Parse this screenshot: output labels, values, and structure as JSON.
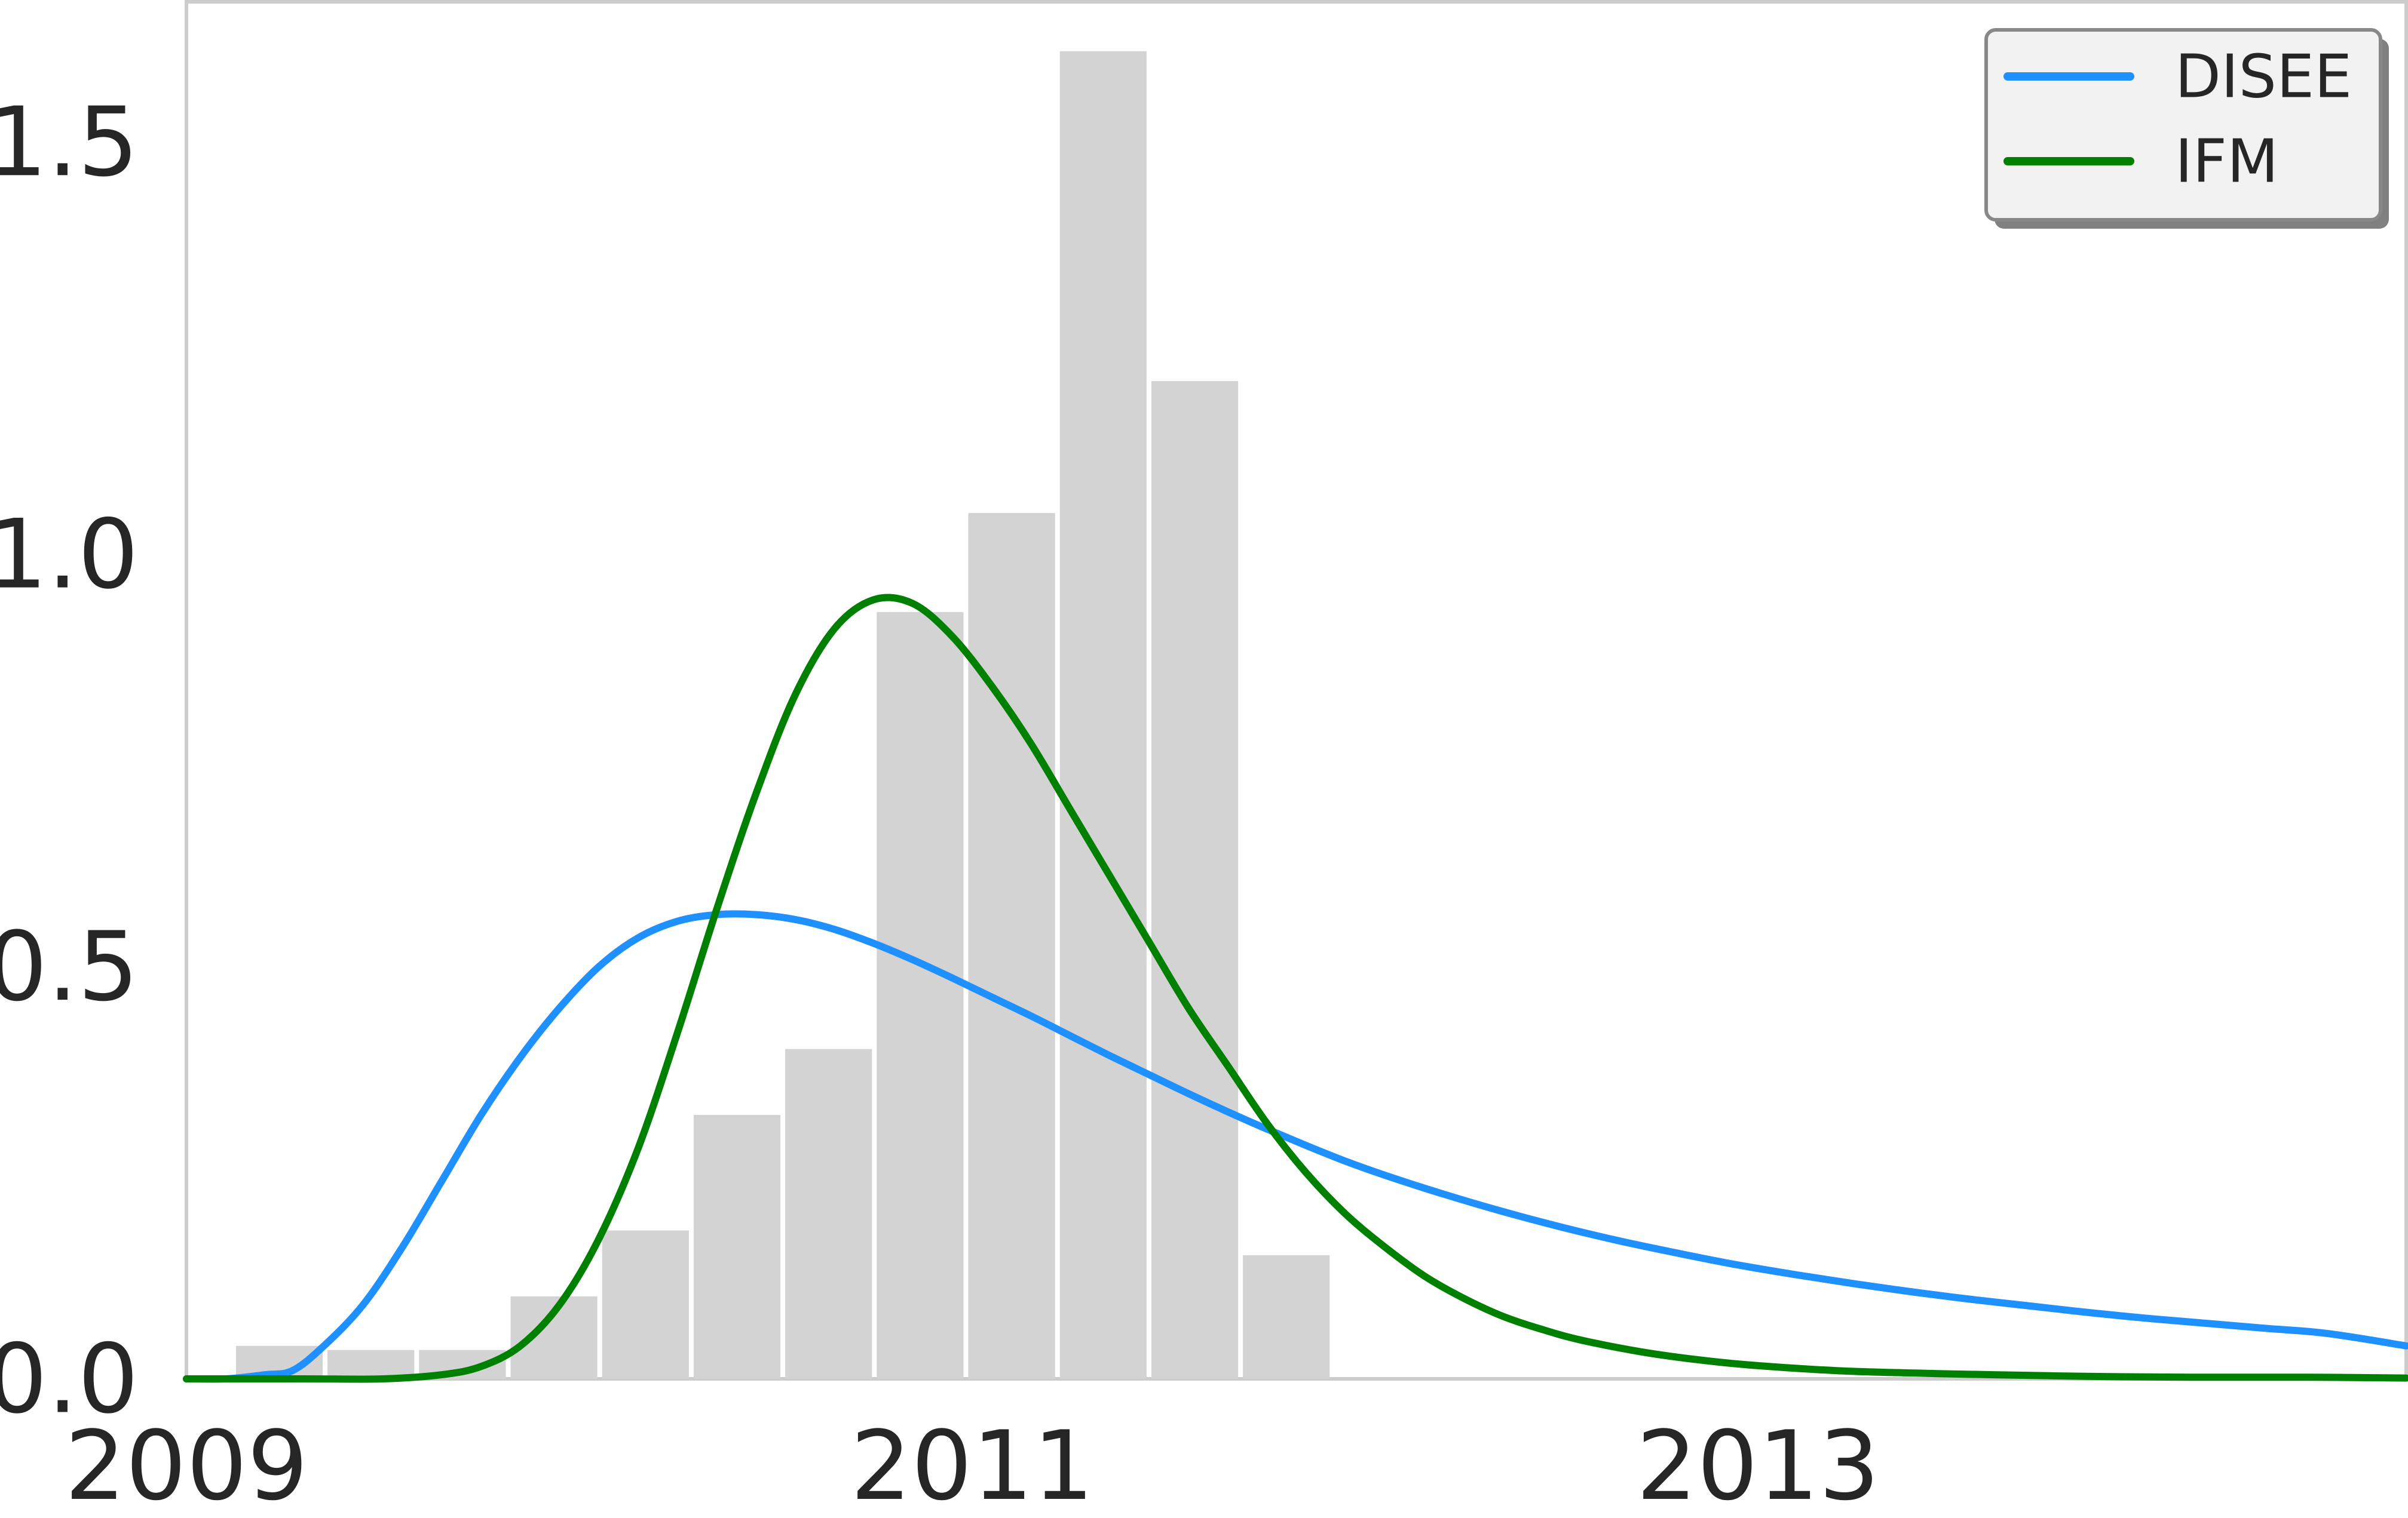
{
  "chart_data": {
    "type": "bar",
    "title": "",
    "xlabel": "",
    "ylabel": "",
    "xlim": [
      2009.0,
      2014.65
    ],
    "ylim": [
      0.0,
      1.67
    ],
    "grid": false,
    "legend_position": "top-right",
    "xticks": [
      {
        "value": 2009,
        "label": "2009"
      },
      {
        "value": 2011,
        "label": "2011"
      },
      {
        "value": 2013,
        "label": "2013"
      }
    ],
    "yticks": [
      {
        "value": 0.0,
        "label": "0.0"
      },
      {
        "value": 0.5,
        "label": "0.5"
      },
      {
        "value": 1.0,
        "label": "1.0"
      },
      {
        "value": 1.5,
        "label": "1.5"
      }
    ],
    "histogram": {
      "color": "#d3d3d3",
      "bin_edges": [
        2009.12,
        2009.353,
        2009.586,
        2009.819,
        2010.052,
        2010.285,
        2010.518,
        2010.751,
        2010.984,
        2011.217,
        2011.45,
        2011.683,
        2011.916
      ],
      "values": [
        0.04,
        0.035,
        0.035,
        0.1,
        0.18,
        0.32,
        0.4,
        0.93,
        1.05,
        1.61,
        1.21,
        0.15
      ]
    },
    "series": [
      {
        "name": "DISEE",
        "color": "#1e90ff",
        "x": [
          2009.0,
          2009.1,
          2009.2,
          2009.27,
          2009.35,
          2009.45,
          2009.55,
          2009.65,
          2009.75,
          2009.85,
          2009.95,
          2010.05,
          2010.15,
          2010.25,
          2010.35,
          2010.45,
          2010.55,
          2010.65,
          2010.75,
          2010.85,
          2010.95,
          2011.05,
          2011.15,
          2011.25,
          2011.35,
          2011.45,
          2011.55,
          2011.65,
          2011.75,
          2011.85,
          2011.95,
          2012.05,
          2012.2,
          2012.35,
          2012.5,
          2012.65,
          2012.8,
          2012.95,
          2013.1,
          2013.25,
          2013.4,
          2013.55,
          2013.7,
          2013.85,
          2014.0,
          2014.15,
          2014.3,
          2014.45,
          2014.65
        ],
        "y": [
          0.0,
          0.0,
          0.005,
          0.01,
          0.04,
          0.09,
          0.16,
          0.24,
          0.32,
          0.39,
          0.45,
          0.5,
          0.535,
          0.555,
          0.563,
          0.563,
          0.557,
          0.545,
          0.528,
          0.508,
          0.486,
          0.463,
          0.44,
          0.416,
          0.392,
          0.369,
          0.346,
          0.324,
          0.303,
          0.283,
          0.264,
          0.247,
          0.224,
          0.203,
          0.184,
          0.167,
          0.152,
          0.138,
          0.126,
          0.115,
          0.105,
          0.096,
          0.088,
          0.08,
          0.073,
          0.067,
          0.061,
          0.055,
          0.04
        ]
      },
      {
        "name": "IFM",
        "color": "#008000",
        "x": [
          2009.0,
          2009.3,
          2009.5,
          2009.65,
          2009.75,
          2009.85,
          2009.95,
          2010.05,
          2010.15,
          2010.25,
          2010.35,
          2010.45,
          2010.55,
          2010.65,
          2010.75,
          2010.85,
          2010.95,
          2011.05,
          2011.15,
          2011.25,
          2011.35,
          2011.45,
          2011.55,
          2011.65,
          2011.75,
          2011.85,
          2011.95,
          2012.05,
          2012.15,
          2012.25,
          2012.35,
          2012.45,
          2012.55,
          2012.7,
          2012.85,
          2013.0,
          2013.2,
          2013.4,
          2013.6,
          2013.85,
          2014.1,
          2014.4,
          2014.65
        ],
        "y": [
          0.0,
          0.0,
          0.0,
          0.005,
          0.015,
          0.04,
          0.09,
          0.17,
          0.28,
          0.42,
          0.57,
          0.71,
          0.83,
          0.91,
          0.945,
          0.94,
          0.9,
          0.84,
          0.77,
          0.69,
          0.61,
          0.53,
          0.45,
          0.38,
          0.31,
          0.25,
          0.2,
          0.16,
          0.125,
          0.098,
          0.076,
          0.06,
          0.047,
          0.033,
          0.023,
          0.016,
          0.01,
          0.007,
          0.005,
          0.003,
          0.002,
          0.002,
          0.001
        ]
      }
    ]
  }
}
